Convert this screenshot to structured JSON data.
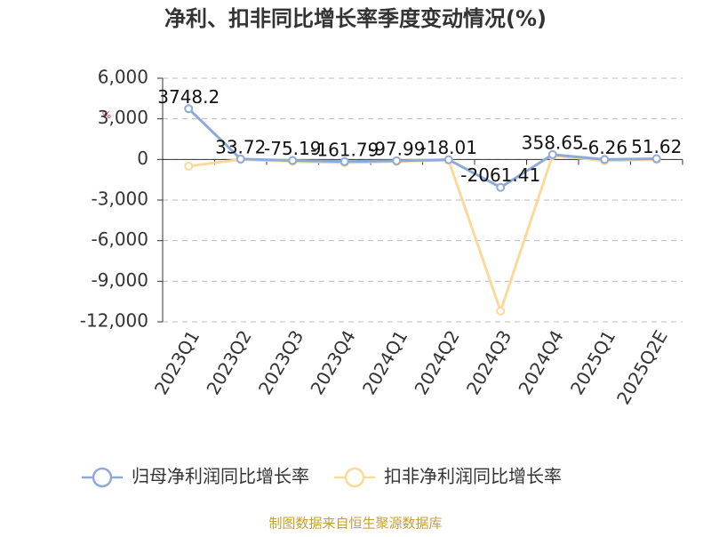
{
  "chart_data": {
    "type": "line",
    "title": "净利、扣非同比增长率季度变动情况(%)",
    "y_unit": "%",
    "source": "制图数据来自恒生聚源数据库",
    "categories": [
      "2023Q1",
      "2023Q2",
      "2023Q3",
      "2023Q4",
      "2024Q1",
      "2024Q2",
      "2024Q3",
      "2024Q4",
      "2025Q1",
      "2025Q2E"
    ],
    "series": [
      {
        "name": "归母净利润同比增长率",
        "color": "#8eaad8",
        "show_labels": true,
        "values": [
          3748.2,
          33.72,
          -75.19,
          -161.79,
          -97.99,
          -18.01,
          -2061.41,
          358.65,
          -6.26,
          51.62
        ]
      },
      {
        "name": "扣非净利润同比增长率",
        "color": "#fcd99a",
        "show_labels": false,
        "values": [
          -500,
          0,
          -150,
          -250,
          -150,
          -50,
          -11200,
          300,
          -100,
          0
        ]
      }
    ],
    "ylim": [
      -12000,
      6000
    ],
    "yticks": [
      {
        "value": 6000,
        "label": "6,000"
      },
      {
        "value": 3000,
        "label": "3,000"
      },
      0,
      {
        "value": -3000,
        "label": "-3,000"
      },
      {
        "value": -6000,
        "label": "-6,000"
      },
      {
        "value": -9000,
        "label": "-9,000"
      },
      {
        "value": -12000,
        "label": "-12,000"
      }
    ],
    "grid": true
  }
}
